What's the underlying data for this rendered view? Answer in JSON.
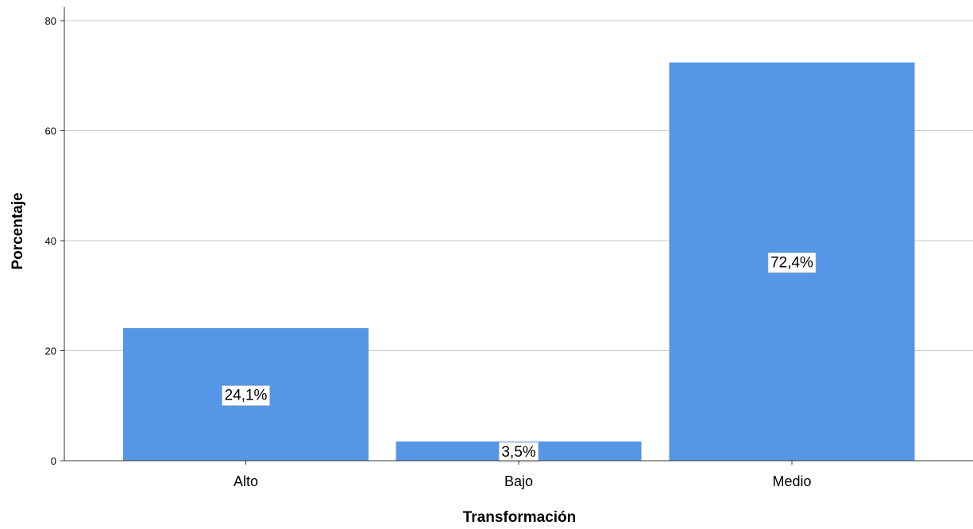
{
  "chart_data": {
    "type": "bar",
    "categories": [
      "Alto",
      "Bajo",
      "Medio"
    ],
    "values": [
      24.1,
      3.5,
      72.4
    ],
    "data_labels": [
      "24,1%",
      "3,5%",
      "72,4%"
    ],
    "xlabel": "Transformación",
    "ylabel": "Porcentaje",
    "ylim": [
      0,
      80
    ],
    "yticks": [
      0,
      20,
      40,
      60,
      80
    ],
    "grid": true,
    "bar_color": "#5596e6"
  }
}
